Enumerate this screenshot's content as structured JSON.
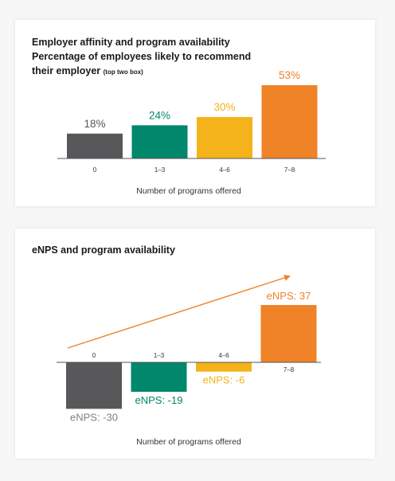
{
  "charts": [
    {
      "title_line1": "Employer affinity and program availability",
      "title_line2": "Percentage of employees likely to recommend their employer",
      "title_note": "(top two box)"
    },
    {
      "title": "eNPS and program availability"
    }
  ],
  "chart_data": [
    {
      "type": "bar",
      "title": "Employer affinity and program availability Percentage of employees likely to recommend their employer (top two box)",
      "categories": [
        "0",
        "1–3",
        "4–6",
        "7–8"
      ],
      "values": [
        18,
        24,
        30,
        53
      ],
      "value_labels": [
        "18%",
        "24%",
        "30%",
        "53%"
      ],
      "colors": [
        "#58585a",
        "#00876c",
        "#f4b21b",
        "#f08228"
      ],
      "label_colors": [
        "#58585a",
        "#00876c",
        "#f4b21b",
        "#f08228"
      ],
      "xlabel": "Number of programs offered",
      "ylabel": "",
      "ylim": [
        0,
        53
      ],
      "grid": false
    },
    {
      "type": "bar",
      "title": "eNPS and program availability",
      "categories": [
        "0",
        "1–3",
        "4–6",
        "7–8"
      ],
      "values": [
        -30,
        -19,
        -6,
        37
      ],
      "value_labels": [
        "eNPS: -30",
        "eNPS: -19",
        "eNPS: -6",
        "eNPS: 37"
      ],
      "colors": [
        "#58585a",
        "#00876c",
        "#f4b21b",
        "#f08228"
      ],
      "label_colors": [
        "#808080",
        "#00876c",
        "#f4b21b",
        "#f08228"
      ],
      "xlabel": "Number of programs offered",
      "ylabel": "",
      "ylim": [
        -30,
        37
      ],
      "grid": false,
      "trend_arrow": true
    }
  ]
}
